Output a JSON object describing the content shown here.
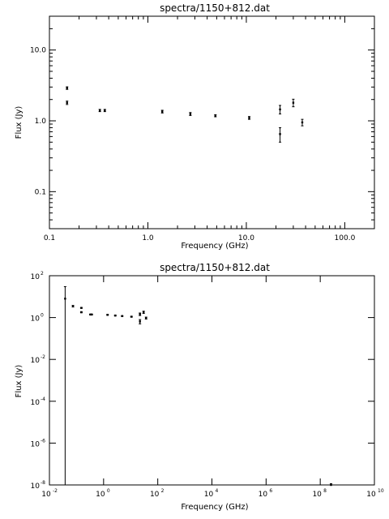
{
  "chart_data": [
    {
      "type": "scatter",
      "title": "spectra/1150+812.dat",
      "xlabel": "Frequency (GHz)",
      "ylabel": "Flux (Jy)",
      "x_scale": "log",
      "y_scale": "log",
      "xlim": [
        0.1,
        200
      ],
      "ylim": [
        0.03,
        30
      ],
      "x_ticks": [
        {
          "v": 0.1,
          "label": "0.1"
        },
        {
          "v": 1,
          "label": "1.0"
        },
        {
          "v": 10,
          "label": "10.0"
        },
        {
          "v": 100,
          "label": "100.0"
        }
      ],
      "y_ticks": [
        {
          "v": 0.1,
          "label": "0.1"
        },
        {
          "v": 1,
          "label": "1.0"
        },
        {
          "v": 10,
          "label": "10.0"
        }
      ],
      "points": [
        {
          "x": 0.151,
          "y": 2.9,
          "err": 0.12
        },
        {
          "x": 0.151,
          "y": 1.8,
          "err": 0.1
        },
        {
          "x": 0.325,
          "y": 1.4,
          "err": 0.05
        },
        {
          "x": 0.365,
          "y": 1.4,
          "err": 0.05
        },
        {
          "x": 1.4,
          "y": 1.35,
          "err": 0.06
        },
        {
          "x": 2.7,
          "y": 1.25,
          "err": 0.06
        },
        {
          "x": 4.85,
          "y": 1.18,
          "err": 0.04
        },
        {
          "x": 10.7,
          "y": 1.1,
          "err": 0.05
        },
        {
          "x": 22,
          "y": 1.45,
          "err": 0.2
        },
        {
          "x": 22,
          "y": 0.65,
          "err": 0.15
        },
        {
          "x": 30,
          "y": 1.8,
          "err": 0.22
        },
        {
          "x": 37,
          "y": 0.95,
          "err": 0.1
        }
      ]
    },
    {
      "type": "scatter",
      "title": "spectra/1150+812.dat",
      "xlabel": "Frequency (GHz)",
      "ylabel": "Flux (Jy)",
      "x_scale": "log",
      "y_scale": "log",
      "xlim": [
        0.01,
        10000000000.0
      ],
      "ylim": [
        1e-08,
        100
      ],
      "x_ticks": [
        {
          "exp": "-2"
        },
        {
          "exp": "0"
        },
        {
          "exp": "2"
        },
        {
          "exp": "4"
        },
        {
          "exp": "6"
        },
        {
          "exp": "8"
        },
        {
          "exp": "10"
        }
      ],
      "y_ticks": [
        {
          "exp": "-8"
        },
        {
          "exp": "-6"
        },
        {
          "exp": "-4"
        },
        {
          "exp": "-2"
        },
        {
          "exp": "0"
        },
        {
          "exp": "2"
        }
      ],
      "points": [
        {
          "x": 0.038,
          "y": 8,
          "err_lo": 1e-08,
          "err_hi": 30
        },
        {
          "x": 0.074,
          "y": 3.5,
          "err": 0.3
        },
        {
          "x": 0.151,
          "y": 2.9,
          "err": 0.12
        },
        {
          "x": 0.151,
          "y": 1.8,
          "err": 0.1
        },
        {
          "x": 0.325,
          "y": 1.4,
          "err": 0.05
        },
        {
          "x": 0.365,
          "y": 1.4,
          "err": 0.05
        },
        {
          "x": 1.4,
          "y": 1.35,
          "err": 0.06
        },
        {
          "x": 2.7,
          "y": 1.25,
          "err": 0.06
        },
        {
          "x": 4.85,
          "y": 1.18,
          "err": 0.04
        },
        {
          "x": 10.7,
          "y": 1.1,
          "err": 0.05
        },
        {
          "x": 22,
          "y": 1.45,
          "err": 0.2
        },
        {
          "x": 22,
          "y": 0.65,
          "err": 0.15
        },
        {
          "x": 30,
          "y": 1.8,
          "err": 0.22
        },
        {
          "x": 37,
          "y": 0.95,
          "err": 0.1
        },
        {
          "x": 250000000,
          "y": 1e-08,
          "err": 1.5e-09
        }
      ]
    }
  ]
}
